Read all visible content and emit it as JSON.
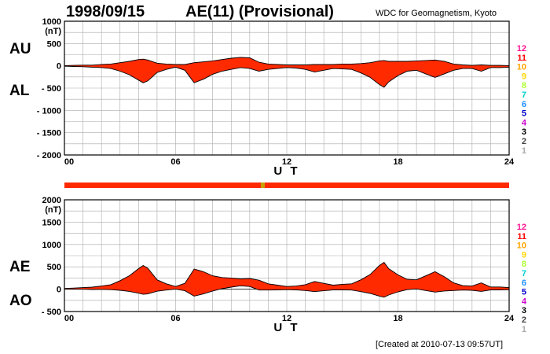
{
  "header": {
    "date": "1998/09/15",
    "title": "AE(11) (Provisional)",
    "source": "WDC for Geomagnetism, Kyoto"
  },
  "footer": {
    "created": "[Created at 2010-07-13 09:57UT]"
  },
  "labels": {
    "au": "AU",
    "al": "AL",
    "ae": "AE",
    "ao": "AO"
  },
  "station_count_scale": {
    "values": [
      "12",
      "11",
      "10",
      "9",
      "8",
      "7",
      "6",
      "5",
      "4",
      "3",
      "2",
      "1"
    ],
    "colors": [
      "#ff1493",
      "#ff0000",
      "#ffa500",
      "#ffd700",
      "#adff2f",
      "#00ced1",
      "#1e90ff",
      "#0000cd",
      "#cc00cc",
      "#000000",
      "#444444",
      "#aaaaaa"
    ]
  },
  "colors": {
    "fill": "#ff2a00",
    "outline": "#000000",
    "grid": "#aaaaaa",
    "bar_main": "#ff2a00",
    "bar_accent": "#c8a000"
  },
  "chart_data": [
    {
      "type": "area",
      "name": "top-panel",
      "xlabel": "U T",
      "ylabel_unit": "(nT)",
      "xlim": [
        0,
        24
      ],
      "ylim": [
        -2000,
        1000
      ],
      "xticks": [
        "00",
        "06",
        "12",
        "18",
        "24"
      ],
      "yticks": [
        "1000",
        "500",
        "0",
        "- 500",
        "- 1000",
        "- 1500",
        "- 2000"
      ],
      "grid": true,
      "x": [
        0,
        0.5,
        1,
        1.5,
        2,
        2.5,
        3,
        3.5,
        4,
        4.25,
        4.5,
        5,
        5.5,
        6,
        6.5,
        7,
        7.5,
        8,
        8.5,
        9,
        9.5,
        10,
        10.5,
        11,
        11.5,
        12,
        12.5,
        13,
        13.5,
        14,
        14.5,
        15,
        15.5,
        16,
        16.5,
        17,
        17.25,
        17.5,
        18,
        18.5,
        19,
        19.5,
        20,
        20.5,
        21,
        21.5,
        22,
        22.5,
        23,
        23.5,
        24
      ],
      "series": [
        {
          "name": "AU",
          "values": [
            5,
            10,
            15,
            15,
            30,
            40,
            70,
            100,
            140,
            150,
            130,
            60,
            40,
            30,
            30,
            70,
            90,
            110,
            140,
            170,
            190,
            180,
            80,
            40,
            30,
            20,
            20,
            20,
            30,
            30,
            30,
            40,
            40,
            50,
            70,
            110,
            120,
            100,
            100,
            100,
            110,
            120,
            130,
            100,
            40,
            20,
            10,
            20,
            10,
            10,
            5
          ]
        },
        {
          "name": "AL",
          "values": [
            -10,
            -15,
            -20,
            -30,
            -40,
            -60,
            -120,
            -200,
            -320,
            -380,
            -340,
            -150,
            -80,
            -30,
            -100,
            -380,
            -300,
            -190,
            -120,
            -80,
            -40,
            -60,
            -120,
            -80,
            -60,
            -40,
            -50,
            -80,
            -140,
            -100,
            -60,
            -70,
            -80,
            -160,
            -260,
            -420,
            -480,
            -360,
            -220,
            -120,
            -100,
            -180,
            -260,
            -180,
            -100,
            -60,
            -60,
            -120,
            -40,
            -40,
            -30
          ]
        }
      ]
    },
    {
      "type": "area",
      "name": "bottom-panel",
      "xlabel": "U T",
      "ylabel_unit": "(nT)",
      "xlim": [
        0,
        24
      ],
      "ylim": [
        -500,
        2000
      ],
      "xticks": [
        "00",
        "06",
        "12",
        "18",
        "24"
      ],
      "yticks": [
        "2000",
        "1500",
        "1000",
        "500",
        "0",
        "- 500"
      ],
      "grid": true,
      "x": [
        0,
        0.5,
        1,
        1.5,
        2,
        2.5,
        3,
        3.5,
        4,
        4.25,
        4.5,
        5,
        5.5,
        6,
        6.5,
        7,
        7.5,
        8,
        8.5,
        9,
        9.5,
        10,
        10.5,
        11,
        11.5,
        12,
        12.5,
        13,
        13.5,
        14,
        14.5,
        15,
        15.5,
        16,
        16.5,
        17,
        17.25,
        17.5,
        18,
        18.5,
        19,
        19.5,
        20,
        20.5,
        21,
        21.5,
        22,
        22.5,
        23,
        23.5,
        24
      ],
      "series": [
        {
          "name": "AE",
          "values": [
            15,
            25,
            35,
            45,
            70,
            100,
            190,
            300,
            460,
            530,
            470,
            210,
            120,
            60,
            130,
            450,
            390,
            300,
            260,
            250,
            230,
            240,
            200,
            120,
            90,
            60,
            70,
            100,
            170,
            130,
            90,
            110,
            120,
            210,
            330,
            530,
            600,
            460,
            320,
            220,
            210,
            300,
            390,
            280,
            140,
            80,
            70,
            140,
            50,
            50,
            35
          ]
        },
        {
          "name": "AO",
          "values": [
            -2,
            -2,
            -2,
            -7,
            -5,
            -10,
            -25,
            -50,
            -90,
            -115,
            -105,
            -45,
            -20,
            0,
            -35,
            -155,
            -105,
            -40,
            10,
            45,
            75,
            60,
            -20,
            -20,
            -15,
            -10,
            -15,
            -30,
            -55,
            -35,
            -15,
            -15,
            -20,
            -55,
            -95,
            -155,
            -180,
            -130,
            -60,
            -10,
            5,
            -30,
            -65,
            -40,
            -30,
            -20,
            -25,
            -50,
            -15,
            -15,
            -12
          ]
        }
      ]
    }
  ]
}
